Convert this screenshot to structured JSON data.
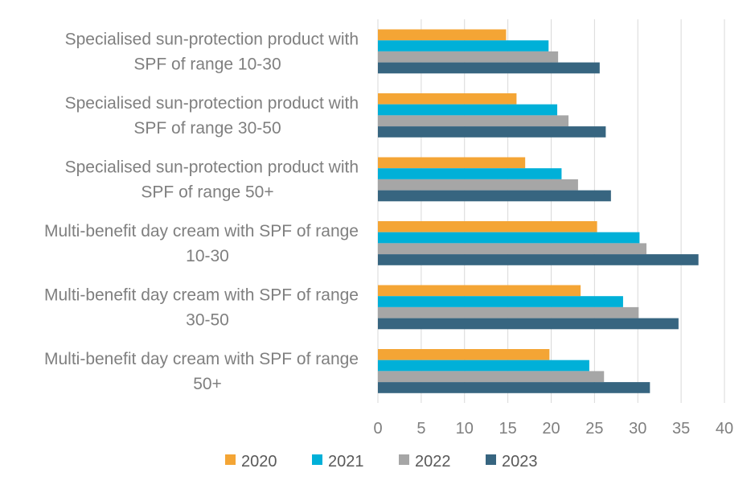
{
  "chart_data": {
    "type": "bar",
    "orientation": "horizontal",
    "categories": [
      [
        "Specialised sun-protection product with",
        "SPF of range 10-30"
      ],
      [
        "Specialised sun-protection product with",
        "SPF of range 30-50"
      ],
      [
        "Specialised sun-protection product with",
        "SPF of range 50+"
      ],
      [
        "Multi-benefit day cream with SPF of range",
        "10-30"
      ],
      [
        "Multi-benefit day cream with SPF of range",
        "30-50"
      ],
      [
        "Multi-benefit day cream with SPF of range",
        "50+"
      ]
    ],
    "series": [
      {
        "name": "2020",
        "color": "#f4a535",
        "values": [
          14.8,
          16.0,
          17.0,
          25.3,
          23.4,
          19.8
        ]
      },
      {
        "name": "2021",
        "color": "#00b0d8",
        "values": [
          19.7,
          20.7,
          21.2,
          30.2,
          28.3,
          24.4
        ]
      },
      {
        "name": "2022",
        "color": "#a6a6a6",
        "values": [
          20.8,
          22.0,
          23.1,
          31.0,
          30.1,
          26.1
        ]
      },
      {
        "name": "2023",
        "color": "#376580",
        "values": [
          25.6,
          26.3,
          26.9,
          37.0,
          34.7,
          31.4
        ]
      }
    ],
    "xlim": [
      0,
      40
    ],
    "xticks": [
      "0",
      "5",
      "10",
      "15",
      "20",
      "25",
      "30",
      "35",
      "40"
    ],
    "grid": "vertical",
    "legend_position": "bottom",
    "title": "",
    "xlabel": "",
    "ylabel": ""
  }
}
